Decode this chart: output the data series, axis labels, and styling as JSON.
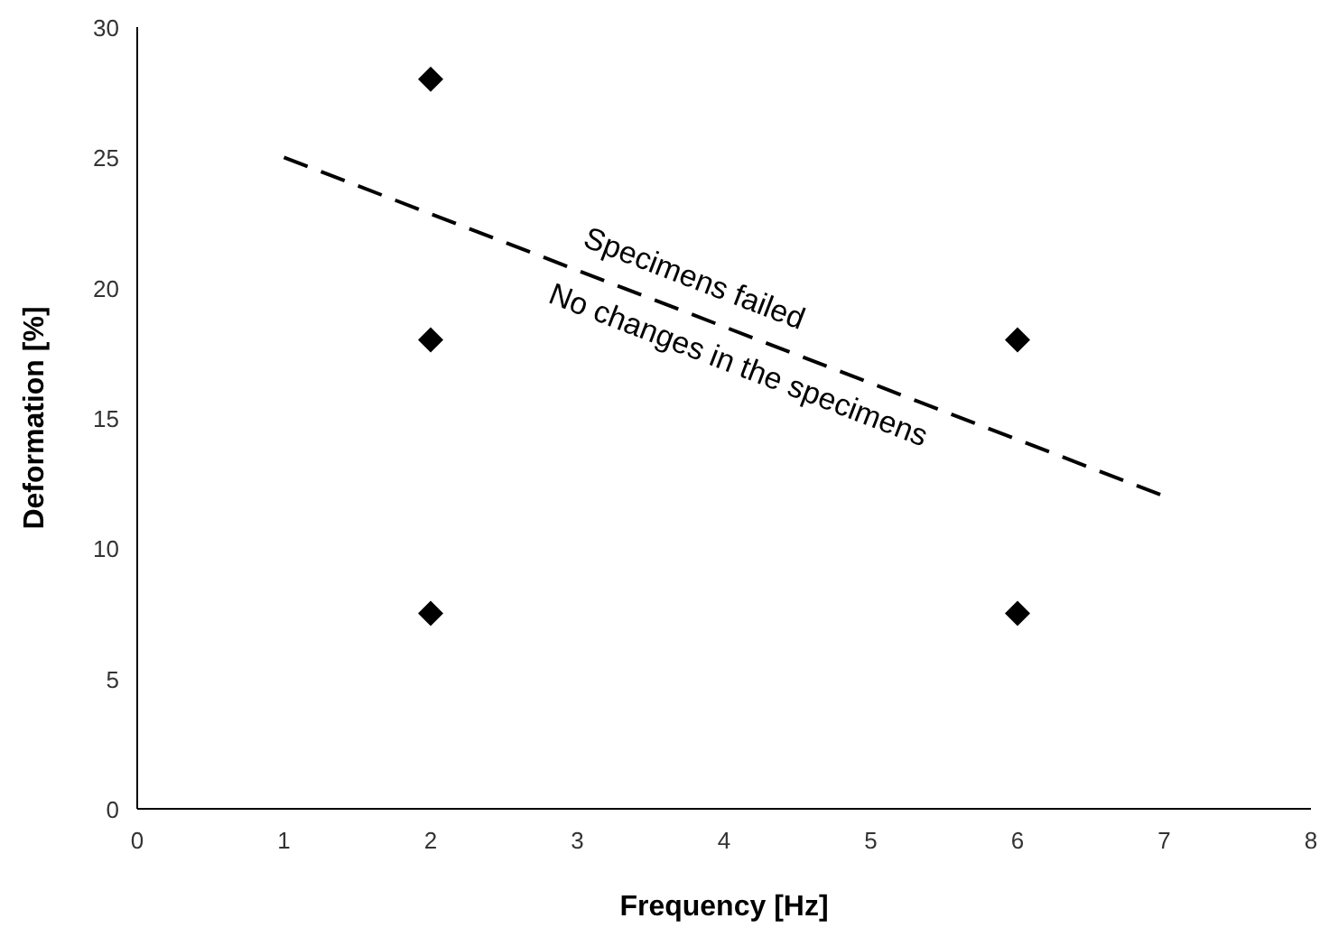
{
  "chart_data": {
    "type": "scatter",
    "xlabel": "Frequency [Hz]",
    "ylabel": "Deformation [%]",
    "xlim": [
      0,
      8
    ],
    "xticks": [
      0,
      1,
      2,
      3,
      4,
      5,
      6,
      7,
      8
    ],
    "ylim": [
      0,
      30
    ],
    "yticks": [
      0,
      5,
      10,
      15,
      20,
      25,
      30
    ],
    "grid": false,
    "series": [
      {
        "color": "#000000",
        "marker": "diamond",
        "x": [
          2,
          2,
          2,
          6,
          6
        ],
        "values": [
          28,
          18,
          7.5,
          18,
          7.5
        ]
      },
      {
        "type": "line",
        "color": "#000000",
        "line_style": "dashed",
        "marker": "none",
        "x": [
          1,
          7
        ],
        "values": [
          25,
          12
        ]
      }
    ],
    "annotations": [
      "Specimens failed",
      "No changes in the specimens"
    ]
  }
}
